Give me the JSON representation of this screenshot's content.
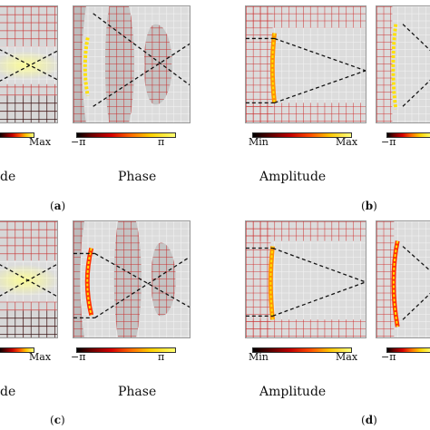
{
  "panels": {
    "a": {
      "letter": "a",
      "amp_label": "de",
      "phase_label": "Phase",
      "amp_max": "Max",
      "phase_min": "−π",
      "phase_max": "π"
    },
    "b": {
      "letter": "b",
      "amp_label": "Amplitude",
      "amp_min": "Min",
      "amp_max": "Max",
      "phase_min": "−π"
    },
    "c": {
      "letter": "c",
      "amp_label": "de",
      "phase_label": "Phase",
      "amp_max": "Max",
      "phase_min": "−π",
      "phase_max": "π"
    },
    "d": {
      "letter": "d",
      "amp_label": "Amplitude",
      "amp_min": "Min",
      "amp_max": "Max",
      "phase_min": "−π"
    }
  },
  "colors": {
    "grid_red": "#c83030",
    "grid_white": "#f2f2f2",
    "grid_black": "#202020",
    "hot_spot": "#ffe000",
    "dashed_line": "#111111"
  }
}
